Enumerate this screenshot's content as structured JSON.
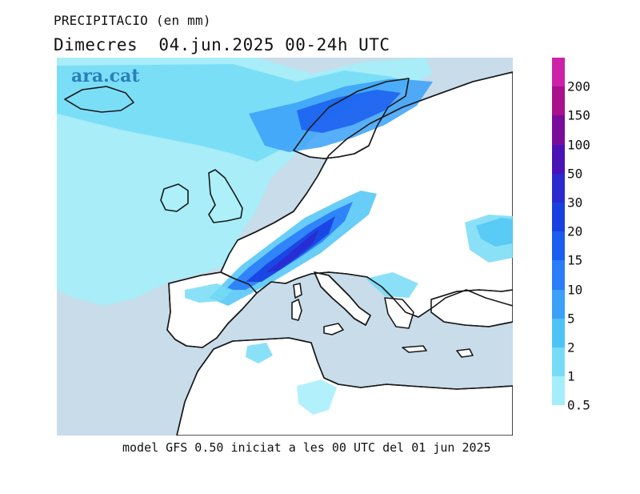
{
  "header": {
    "title": "PRECIPITACIO (en mm)",
    "date_line": "Dimecres  04.jun.2025 00-24h UTC"
  },
  "map": {
    "brand": "ara.cat",
    "land_color": "#ffffff",
    "sea_color": "#c8dcea",
    "coast_color": "#1a1a1a"
  },
  "legend": {
    "items": [
      {
        "label": "200",
        "color": "#cc22aa"
      },
      {
        "label": "150",
        "color": "#a8108c"
      },
      {
        "label": "100",
        "color": "#7a0c9c"
      },
      {
        "label": "50",
        "color": "#4a12b4"
      },
      {
        "label": "30",
        "color": "#2a2ad0"
      },
      {
        "label": "20",
        "color": "#1840e0"
      },
      {
        "label": "15",
        "color": "#1a5ef0"
      },
      {
        "label": "10",
        "color": "#2a7cf8"
      },
      {
        "label": "5",
        "color": "#3aa0f8"
      },
      {
        "label": "2",
        "color": "#4ec4f6"
      },
      {
        "label": "1",
        "color": "#76dcf6"
      },
      {
        "label": "0.5",
        "color": "#a4eefa"
      }
    ]
  },
  "footer": {
    "text": "model GFS 0.50 iniciat a les 00 UTC del 01 jun 2025"
  }
}
